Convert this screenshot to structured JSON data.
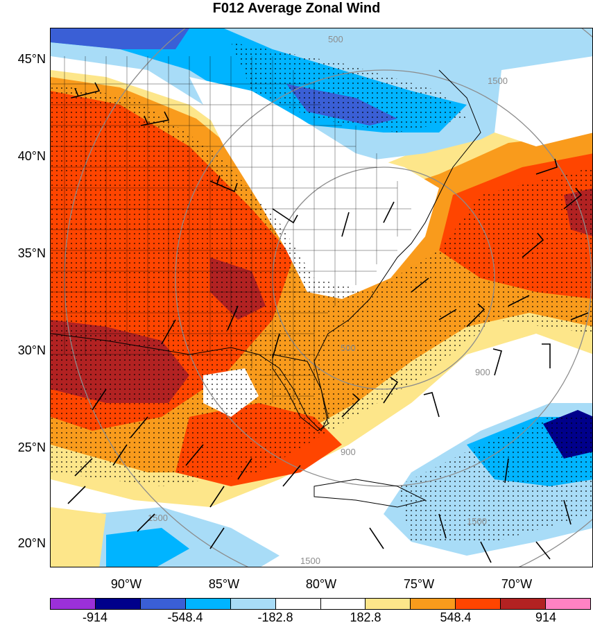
{
  "title": "F012 Average Zonal Wind",
  "lat_labels": [
    "45°N",
    "40°N",
    "35°N",
    "30°N",
    "25°N",
    "20°N"
  ],
  "lon_labels": [
    "90°W",
    "85°W",
    "80°W",
    "75°W",
    "70°W"
  ],
  "contour_labels": [
    "500",
    "900",
    "1500"
  ],
  "colorbar": {
    "colors": [
      "#9b30d9",
      "#00008b",
      "#3a5fd6",
      "#00b4ff",
      "#a8dcf7",
      "#ffffff",
      "#ffffff",
      "#fde68a",
      "#f99b1c",
      "#ff4500",
      "#b22222",
      "#ff82c3"
    ],
    "labels": [
      "-914",
      "-548.4",
      "-182.8",
      "182.8",
      "548.4",
      "914"
    ]
  }
}
